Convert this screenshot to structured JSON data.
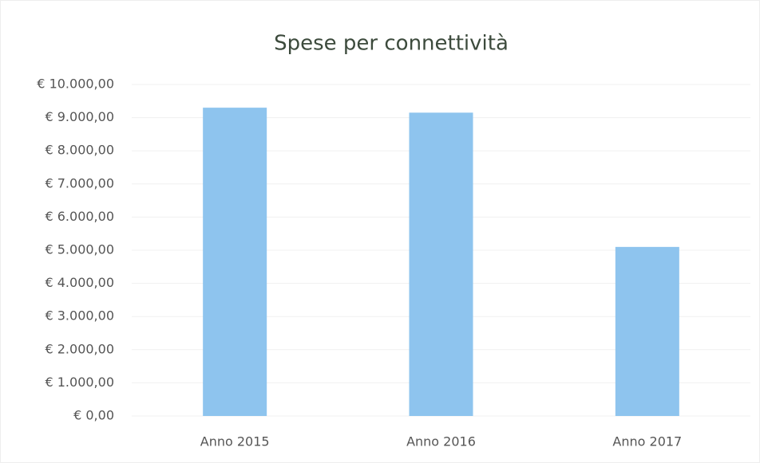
{
  "chart_data": {
    "type": "bar",
    "title": "Spese per connettività",
    "categories": [
      "Anno 2015",
      "Anno 2016",
      "Anno 2017"
    ],
    "values": [
      9300,
      9150,
      5100
    ],
    "color": "#8ec4ee",
    "ylim": [
      0,
      10000
    ],
    "yticks": [
      {
        "value": 0,
        "label": "€ 0,00"
      },
      {
        "value": 1000,
        "label": "€ 1.000,00"
      },
      {
        "value": 2000,
        "label": "€ 2.000,00"
      },
      {
        "value": 3000,
        "label": "€ 3.000,00"
      },
      {
        "value": 4000,
        "label": "€ 4.000,00"
      },
      {
        "value": 5000,
        "label": "€ 5.000,00"
      },
      {
        "value": 6000,
        "label": "€ 6.000,00"
      },
      {
        "value": 7000,
        "label": "€ 7.000,00"
      },
      {
        "value": 8000,
        "label": "€ 8.000,00"
      },
      {
        "value": 9000,
        "label": "€ 9.000,00"
      },
      {
        "value": 10000,
        "label": "€ 10.000,00"
      }
    ],
    "grid": true
  }
}
